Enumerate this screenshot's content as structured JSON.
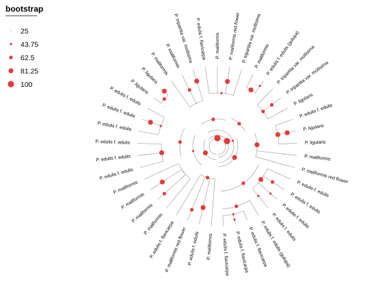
{
  "legend": {
    "title": "bootstrap",
    "items": [
      {
        "label": "25",
        "value": 25
      },
      {
        "label": "43.75",
        "value": 43.75
      },
      {
        "label": "62.5",
        "value": 62.5
      },
      {
        "label": "81.25",
        "value": 81.25
      },
      {
        "label": "100",
        "value": 100
      }
    ]
  },
  "node_color": "#e53b3b",
  "branch_color": "#8a8a8a",
  "tips": [
    {
      "label": "P. maliformis"
    },
    {
      "label": "P. edulis f. edulis"
    },
    {
      "label": "P. maliformis red flower"
    },
    {
      "label": "P. edulis f. flavicarpa"
    },
    {
      "label": "P. maliformis"
    },
    {
      "label": "P. maliformis"
    },
    {
      "label": "P. maliformis"
    },
    {
      "label": "P. maliformis"
    },
    {
      "label": "P. edulis f. edulis"
    },
    {
      "label": "P. edulis f. edulis"
    },
    {
      "label": "P. edulis f. edulis"
    },
    {
      "label": "P. edulis f. edulis"
    },
    {
      "label": "P. edulis f. edulis"
    },
    {
      "label": "P. edulis f. edulis"
    },
    {
      "label": "P. ligularis"
    },
    {
      "label": "P. ligularis"
    },
    {
      "label": "P. maliformis"
    },
    {
      "label": "P. maliformis"
    },
    {
      "label": "P. tripartita var. mollisima"
    },
    {
      "label": "P. edulis f. flavicarpa"
    },
    {
      "label": "P. maliformis"
    },
    {
      "label": "P. maliformis red flower"
    },
    {
      "label": "P. tripartita var. mollisima"
    },
    {
      "label": "P. maliformis"
    },
    {
      "label": "P. edulis f. edulis (gulupa)"
    },
    {
      "label": "P. tripartita var. mollisima"
    },
    {
      "label": "P. tripartita var. mollisima"
    },
    {
      "label": "P. ligularis"
    },
    {
      "label": "P. edulis f. edulis"
    },
    {
      "label": "P. ligularis"
    },
    {
      "label": "P. ligularis"
    },
    {
      "label": "P. maliformis"
    },
    {
      "label": "P. maliformis red flower"
    },
    {
      "label": "P. edulis f. edulis"
    },
    {
      "label": "P. edulis f. edulis"
    },
    {
      "label": "P. edulis f. edulis"
    },
    {
      "label": "P. edulis f. edulis"
    },
    {
      "label": "P. edulis f. edulis (gulupa)"
    },
    {
      "label": "P. edulis f. flavicarpa"
    },
    {
      "label": "P. edulis f. flavicarpa"
    },
    {
      "label": "P. edulis f. flavicarpa"
    }
  ],
  "nodes": [
    {
      "bootstrap": 100
    },
    {
      "bootstrap": 81.25
    },
    {
      "bootstrap": 100
    },
    {
      "bootstrap": 62.5
    },
    {
      "bootstrap": 43.75
    },
    {
      "bootstrap": 25
    },
    {
      "bootstrap": 62.5
    },
    {
      "bootstrap": 81.25
    },
    {
      "bootstrap": 43.75
    },
    {
      "bootstrap": 62.5
    },
    {
      "bootstrap": 43.75
    },
    {
      "bootstrap": 62.5
    },
    {
      "bootstrap": 25
    },
    {
      "bootstrap": 43.75
    },
    {
      "bootstrap": 62.5
    },
    {
      "bootstrap": 81.25
    },
    {
      "bootstrap": 62.5
    },
    {
      "bootstrap": 81.25
    },
    {
      "bootstrap": 81.25
    },
    {
      "bootstrap": 81.25
    },
    {
      "bootstrap": 62.5
    },
    {
      "bootstrap": 81.25
    },
    {
      "bootstrap": 62.5
    },
    {
      "bootstrap": 43.75
    },
    {
      "bootstrap": 62.5
    },
    {
      "bootstrap": 81.25
    },
    {
      "bootstrap": 81.25
    },
    {
      "bootstrap": 81.25
    },
    {
      "bootstrap": 81.25
    },
    {
      "bootstrap": 62.5
    },
    {
      "bootstrap": 81.25
    },
    {
      "bootstrap": 62.5
    },
    {
      "bootstrap": 43.75
    },
    {
      "bootstrap": 43.75
    },
    {
      "bootstrap": 25
    },
    {
      "bootstrap": 25
    },
    {
      "bootstrap": 81.25
    },
    {
      "bootstrap": 81.25
    },
    {
      "bootstrap": 62.5
    },
    {
      "bootstrap": 43.75
    },
    {
      "bootstrap": 43.75
    },
    {
      "bootstrap": 62.5
    },
    {
      "bootstrap": 25
    },
    {
      "bootstrap": 25
    }
  ]
}
